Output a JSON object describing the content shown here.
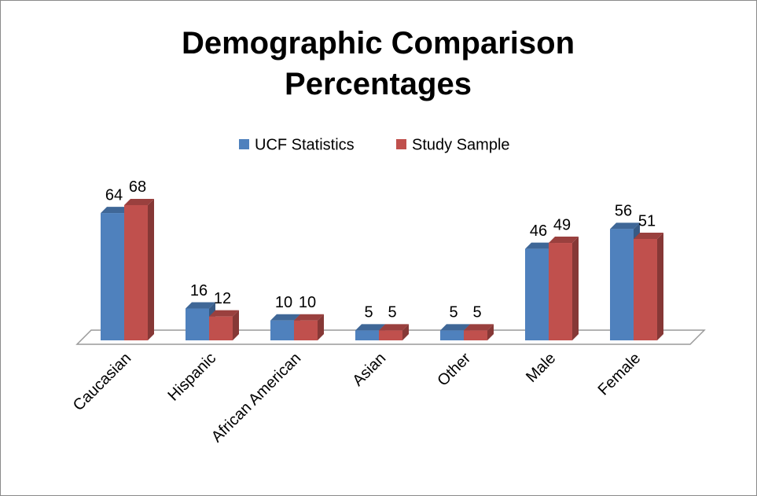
{
  "chart_data": {
    "type": "bar3d",
    "title": "Demographic Comparison Percentages",
    "categories": [
      "Caucasian",
      "Hispanic",
      "African American",
      "Asian",
      "Other",
      "Male",
      "Female"
    ],
    "series": [
      {
        "name": "UCF Statistics",
        "color": "#4f81bd",
        "values": [
          64,
          16,
          10,
          5,
          5,
          46,
          56
        ]
      },
      {
        "name": "Study Sample",
        "color": "#c0504d",
        "values": [
          68,
          12,
          10,
          5,
          5,
          49,
          51
        ]
      }
    ],
    "legend": "top"
  }
}
